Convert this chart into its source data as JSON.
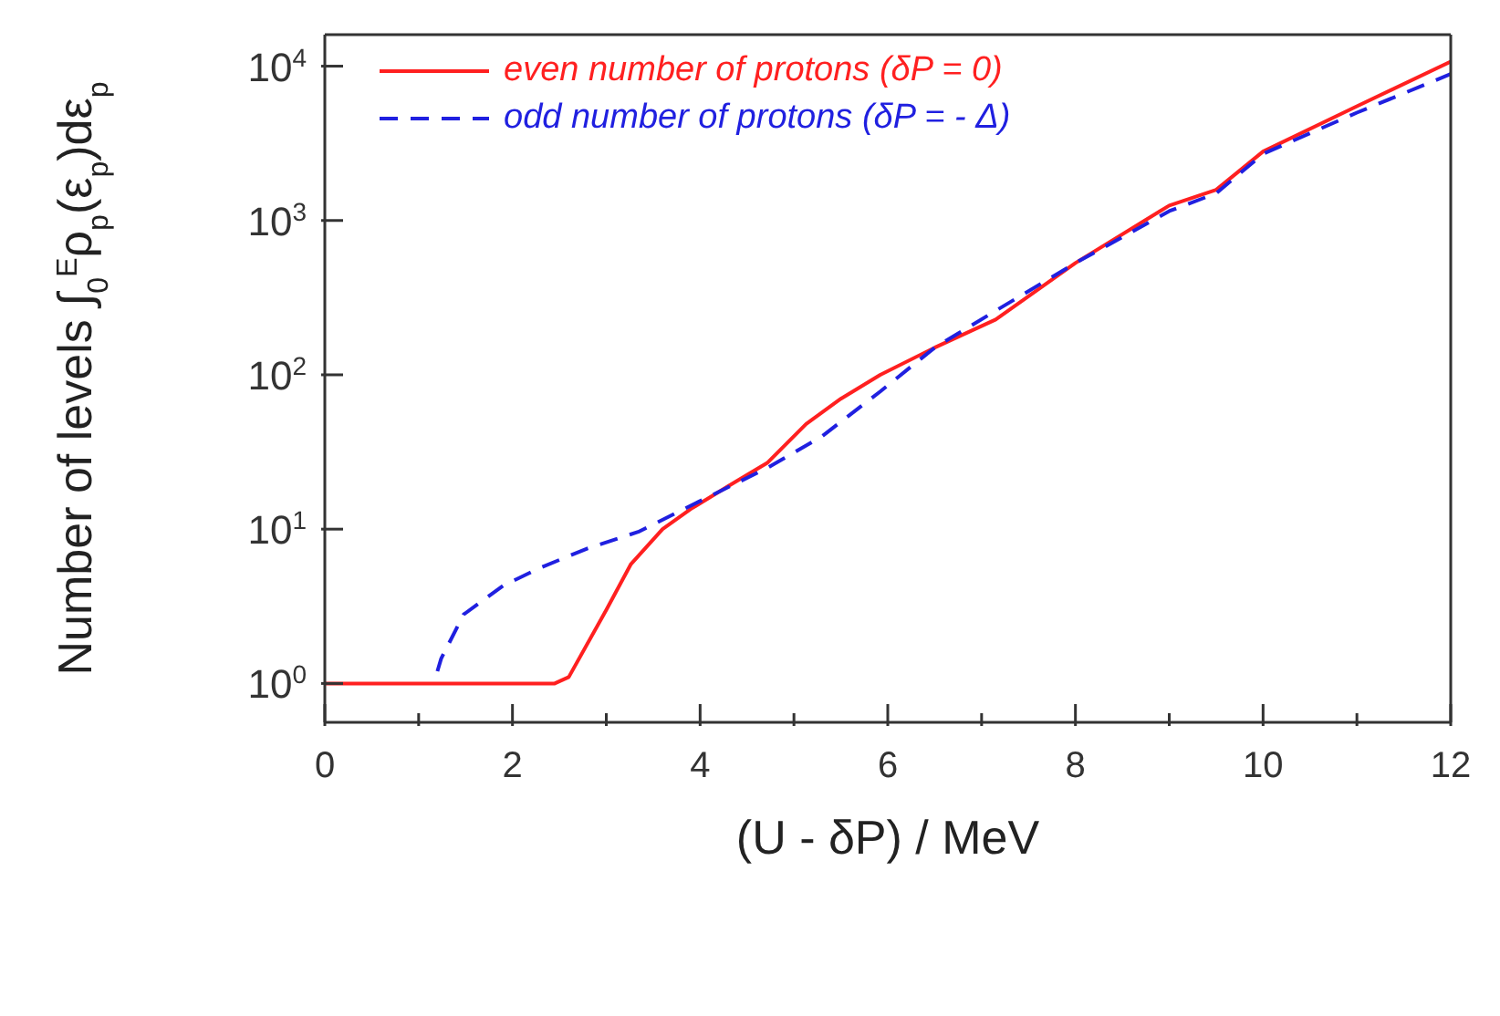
{
  "chart_data": {
    "type": "line",
    "xlabel": "(U - δP) / MeV",
    "ylabel": "Number of levels ∫$_{0}$$^{E}$ρ$_{p}$(ε$_{p}$)dε$_{p}$",
    "xlim": [
      0,
      12
    ],
    "xticks": [
      0,
      {
        "value": 1,
        "label": null
      },
      2,
      {
        "value": 3,
        "label": null
      },
      4,
      {
        "value": 5,
        "label": null
      },
      6,
      {
        "value": 7,
        "label": null
      },
      8,
      {
        "value": 9,
        "label": null
      },
      10,
      {
        "value": 11,
        "label": null
      },
      12
    ],
    "ylim": [
      0.56,
      16000
    ],
    "yticks": [
      {
        "value": 1,
        "label": "10$^{0}$"
      },
      {
        "value": 10,
        "label": "10$^{1}$"
      },
      {
        "value": 100,
        "label": "10$^{2}$"
      },
      {
        "value": 1000,
        "label": "10$^{3}$"
      },
      {
        "value": 10000,
        "label": "10$^{4}$"
      }
    ],
    "log": "y",
    "legend": "top left",
    "marker": "none",
    "series": [
      {
        "name": "even number of protons (δP = 0)",
        "color": "#ff2020",
        "line_style": "solid",
        "x": [
          0,
          2.45,
          2.6,
          3.0,
          3.26,
          3.6,
          3.9,
          4.3,
          4.72,
          5.13,
          5.5,
          5.92,
          6.5,
          7.15,
          8,
          9,
          9.5,
          10,
          11,
          12
        ],
        "values": [
          1,
          1,
          1.1,
          3,
          5.9,
          10,
          13.5,
          19,
          27,
          48,
          70,
          100,
          150,
          228,
          530,
          1250,
          1580,
          2800,
          5500,
          10700
        ]
      },
      {
        "name": "odd number of protons (δP = - Δ)",
        "color": "#2020e0",
        "line_style": "dashed",
        "x": [
          1.2,
          1.24,
          1.48,
          1.9,
          2.29,
          2.8,
          3.34,
          3.98,
          4.72,
          5.3,
          5.92,
          6.5,
          7.15,
          8,
          9,
          9.5,
          10,
          11,
          12
        ],
        "values": [
          1.2,
          1.45,
          2.8,
          4.3,
          5.6,
          7.5,
          9.6,
          15,
          25,
          40,
          78,
          150,
          260,
          530,
          1150,
          1500,
          2700,
          5000,
          8900
        ]
      }
    ]
  }
}
